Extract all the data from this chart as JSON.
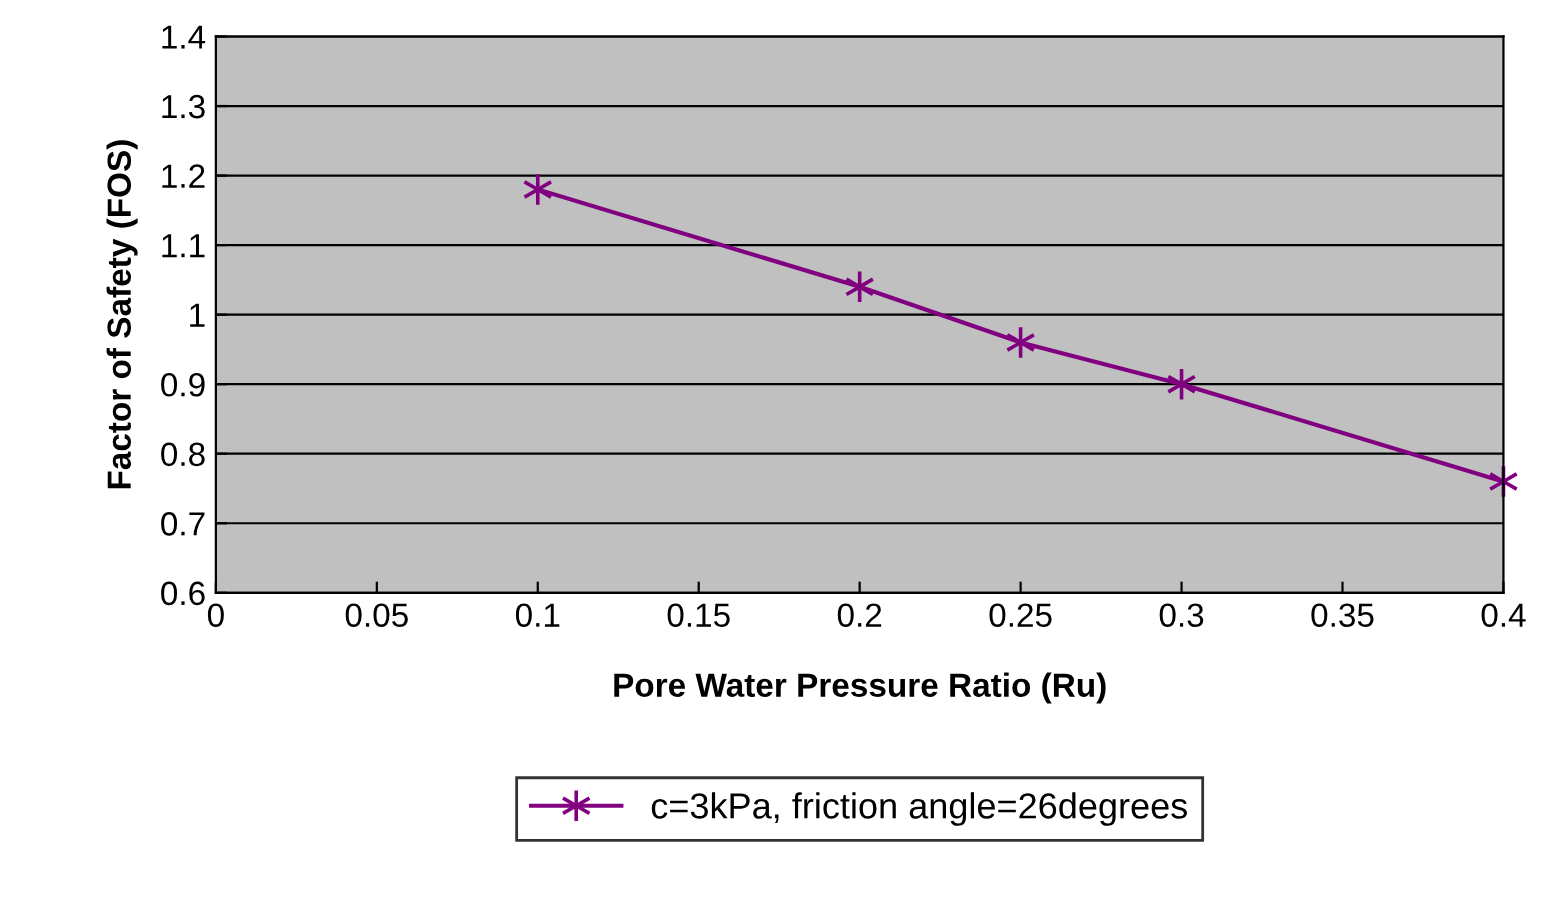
{
  "chart_data": {
    "type": "line",
    "xlabel": "Pore Water Pressure Ratio (Ru)",
    "ylabel": "Factor of Safety (FOS)",
    "x": [
      0.1,
      0.2,
      0.25,
      0.3,
      0.4
    ],
    "series": [
      {
        "name": "c=3kPa, friction angle=26degrees",
        "color": "#800080",
        "values": [
          1.18,
          1.04,
          0.96,
          0.9,
          0.76
        ]
      }
    ],
    "xlim": [
      0,
      0.4
    ],
    "xticks": [
      0,
      {
        "value": 0.05,
        "label": "0.05"
      },
      {
        "value": 0.1,
        "label": "0.1"
      },
      {
        "value": 0.15,
        "label": "0.15"
      },
      {
        "value": 0.2,
        "label": "0.2"
      },
      {
        "value": 0.25,
        "label": "0.25"
      },
      {
        "value": 0.3,
        "label": "0.3"
      },
      {
        "value": 0.35,
        "label": "0.35"
      },
      {
        "value": 0.4,
        "label": "0.4"
      }
    ],
    "ylim": [
      0.6,
      1.4
    ],
    "yticks": [
      {
        "value": 0.6,
        "label": "0.6"
      },
      {
        "value": 0.7,
        "label": "0.7"
      },
      {
        "value": 0.8,
        "label": "0.8"
      },
      {
        "value": 0.9,
        "label": "0.9"
      },
      {
        "value": 1,
        "label": "1"
      },
      {
        "value": 1.1,
        "label": "1.1"
      },
      {
        "value": 1.2,
        "label": "1.2"
      },
      {
        "value": 1.3,
        "label": "1.3"
      },
      {
        "value": 1.4,
        "label": "1.4"
      }
    ],
    "grid": "y",
    "legend": "bottom",
    "marker": "cross",
    "line_style": "solid"
  }
}
